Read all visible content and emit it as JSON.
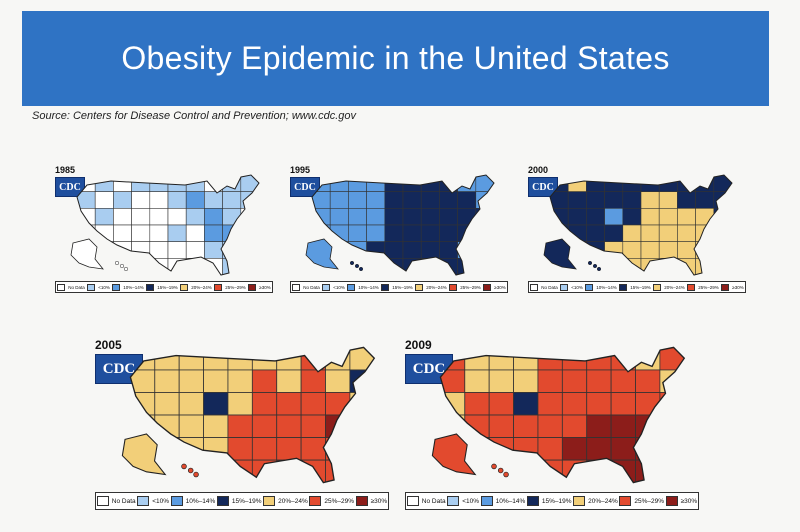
{
  "title": "Obesity Epidemic in the United States",
  "source": "Source: Centers for Disease Control and Prevention; www.cdc.gov",
  "logo_text": "CDC",
  "legend": [
    {
      "label": "No Data",
      "color": "#ffffff"
    },
    {
      "label": "<10%",
      "color": "#a9cdf0"
    },
    {
      "label": "10%–14%",
      "color": "#5b9be0"
    },
    {
      "label": "15%–19%",
      "color": "#13285a"
    },
    {
      "label": "20%–24%",
      "color": "#f2cf79"
    },
    {
      "label": "25%–29%",
      "color": "#e24a2e"
    },
    {
      "label": "≥30%",
      "color": "#8c1d1a"
    }
  ],
  "maps": [
    {
      "year": "1985",
      "cells": [
        [
          "#ffffff",
          "#a9cdf0",
          "#ffffff",
          "#a9cdf0",
          "#a9cdf0",
          "#a9cdf0",
          "#a9cdf0",
          "#ffffff",
          "#a9cdf0",
          "#a9cdf0"
        ],
        [
          "#a9cdf0",
          "#ffffff",
          "#a9cdf0",
          "#ffffff",
          "#ffffff",
          "#a9cdf0",
          "#5b9be0",
          "#a9cdf0",
          "#a9cdf0",
          "#a9cdf0"
        ],
        [
          "#ffffff",
          "#a9cdf0",
          "#ffffff",
          "#ffffff",
          "#ffffff",
          "#ffffff",
          "#a9cdf0",
          "#5b9be0",
          "#a9cdf0",
          "#ffffff"
        ],
        [
          "#ffffff",
          "#ffffff",
          "#ffffff",
          "#ffffff",
          "#ffffff",
          "#a9cdf0",
          "#ffffff",
          "#5b9be0",
          "#5b9be0",
          "#ffffff"
        ],
        [
          "#ffffff",
          "#ffffff",
          "#ffffff",
          "#ffffff",
          "#ffffff",
          "#ffffff",
          "#ffffff",
          "#a9cdf0",
          "#a9cdf0",
          "#ffffff"
        ],
        [
          "#ffffff",
          "#ffffff",
          "#ffffff",
          "#ffffff",
          "#ffffff",
          "#ffffff",
          "#ffffff",
          "#ffffff",
          "#a9cdf0",
          "#ffffff"
        ]
      ]
    },
    {
      "year": "1995",
      "cells": [
        [
          "#5b9be0",
          "#5b9be0",
          "#5b9be0",
          "#5b9be0",
          "#13285a",
          "#13285a",
          "#13285a",
          "#13285a",
          "#5b9be0",
          "#5b9be0"
        ],
        [
          "#5b9be0",
          "#5b9be0",
          "#5b9be0",
          "#5b9be0",
          "#13285a",
          "#13285a",
          "#13285a",
          "#13285a",
          "#13285a",
          "#5b9be0"
        ],
        [
          "#5b9be0",
          "#5b9be0",
          "#5b9be0",
          "#5b9be0",
          "#13285a",
          "#13285a",
          "#13285a",
          "#13285a",
          "#13285a",
          "#13285a"
        ],
        [
          "#5b9be0",
          "#5b9be0",
          "#5b9be0",
          "#5b9be0",
          "#13285a",
          "#13285a",
          "#13285a",
          "#13285a",
          "#13285a",
          "#13285a"
        ],
        [
          "#5b9be0",
          "#5b9be0",
          "#5b9be0",
          "#13285a",
          "#13285a",
          "#13285a",
          "#13285a",
          "#13285a",
          "#5b9be0",
          "#13285a"
        ],
        [
          "#5b9be0",
          "#5b9be0",
          "#5b9be0",
          "#13285a",
          "#13285a",
          "#13285a",
          "#13285a",
          "#13285a",
          "#13285a",
          "#13285a"
        ]
      ]
    },
    {
      "year": "2000",
      "cells": [
        [
          "#13285a",
          "#f2cf79",
          "#13285a",
          "#13285a",
          "#13285a",
          "#13285a",
          "#13285a",
          "#13285a",
          "#13285a",
          "#13285a"
        ],
        [
          "#13285a",
          "#13285a",
          "#13285a",
          "#13285a",
          "#13285a",
          "#f2cf79",
          "#f2cf79",
          "#13285a",
          "#13285a",
          "#13285a"
        ],
        [
          "#13285a",
          "#13285a",
          "#13285a",
          "#5b9be0",
          "#13285a",
          "#f2cf79",
          "#f2cf79",
          "#f2cf79",
          "#f2cf79",
          "#13285a"
        ],
        [
          "#13285a",
          "#13285a",
          "#13285a",
          "#13285a",
          "#f2cf79",
          "#f2cf79",
          "#f2cf79",
          "#f2cf79",
          "#f2cf79",
          "#f2cf79"
        ],
        [
          "#13285a",
          "#13285a",
          "#13285a",
          "#f2cf79",
          "#f2cf79",
          "#f2cf79",
          "#f2cf79",
          "#f2cf79",
          "#f2cf79",
          "#f2cf79"
        ],
        [
          "#13285a",
          "#13285a",
          "#13285a",
          "#13285a",
          "#f2cf79",
          "#f2cf79",
          "#f2cf79",
          "#f2cf79",
          "#f2cf79",
          "#13285a"
        ]
      ]
    },
    {
      "year": "2005",
      "cells": [
        [
          "#f2cf79",
          "#f2cf79",
          "#f2cf79",
          "#f2cf79",
          "#f2cf79",
          "#f2cf79",
          "#f2cf79",
          "#e24a2e",
          "#f2cf79",
          "#f2cf79"
        ],
        [
          "#f2cf79",
          "#f2cf79",
          "#f2cf79",
          "#f2cf79",
          "#f2cf79",
          "#e24a2e",
          "#f2cf79",
          "#e24a2e",
          "#f2cf79",
          "#13285a"
        ],
        [
          "#f2cf79",
          "#f2cf79",
          "#f2cf79",
          "#13285a",
          "#f2cf79",
          "#e24a2e",
          "#e24a2e",
          "#e24a2e",
          "#e24a2e",
          "#f2cf79"
        ],
        [
          "#f2cf79",
          "#f2cf79",
          "#f2cf79",
          "#f2cf79",
          "#e24a2e",
          "#e24a2e",
          "#e24a2e",
          "#e24a2e",
          "#8c1d1a",
          "#f2cf79"
        ],
        [
          "#f2cf79",
          "#f2cf79",
          "#f2cf79",
          "#f2cf79",
          "#e24a2e",
          "#e24a2e",
          "#e24a2e",
          "#e24a2e",
          "#e24a2e",
          "#e24a2e"
        ],
        [
          "#f2cf79",
          "#f2cf79",
          "#f2cf79",
          "#e24a2e",
          "#e24a2e",
          "#e24a2e",
          "#8c1d1a",
          "#e24a2e",
          "#e24a2e",
          "#e24a2e"
        ]
      ]
    },
    {
      "year": "2009",
      "cells": [
        [
          "#e24a2e",
          "#f2cf79",
          "#f2cf79",
          "#f2cf79",
          "#e24a2e",
          "#e24a2e",
          "#e24a2e",
          "#e24a2e",
          "#f2cf79",
          "#e24a2e"
        ],
        [
          "#e24a2e",
          "#f2cf79",
          "#f2cf79",
          "#f2cf79",
          "#e24a2e",
          "#e24a2e",
          "#e24a2e",
          "#e24a2e",
          "#e24a2e",
          "#f2cf79"
        ],
        [
          "#f2cf79",
          "#e24a2e",
          "#e24a2e",
          "#13285a",
          "#e24a2e",
          "#e24a2e",
          "#e24a2e",
          "#e24a2e",
          "#e24a2e",
          "#e24a2e"
        ],
        [
          "#f2cf79",
          "#e24a2e",
          "#e24a2e",
          "#e24a2e",
          "#e24a2e",
          "#e24a2e",
          "#8c1d1a",
          "#8c1d1a",
          "#8c1d1a",
          "#e24a2e"
        ],
        [
          "#f2cf79",
          "#e24a2e",
          "#e24a2e",
          "#e24a2e",
          "#e24a2e",
          "#8c1d1a",
          "#8c1d1a",
          "#8c1d1a",
          "#8c1d1a",
          "#e24a2e"
        ],
        [
          "#f2cf79",
          "#e24a2e",
          "#e24a2e",
          "#e24a2e",
          "#e24a2e",
          "#e24a2e",
          "#8c1d1a",
          "#8c1d1a",
          "#8c1d1a",
          "#e24a2e"
        ]
      ]
    }
  ]
}
